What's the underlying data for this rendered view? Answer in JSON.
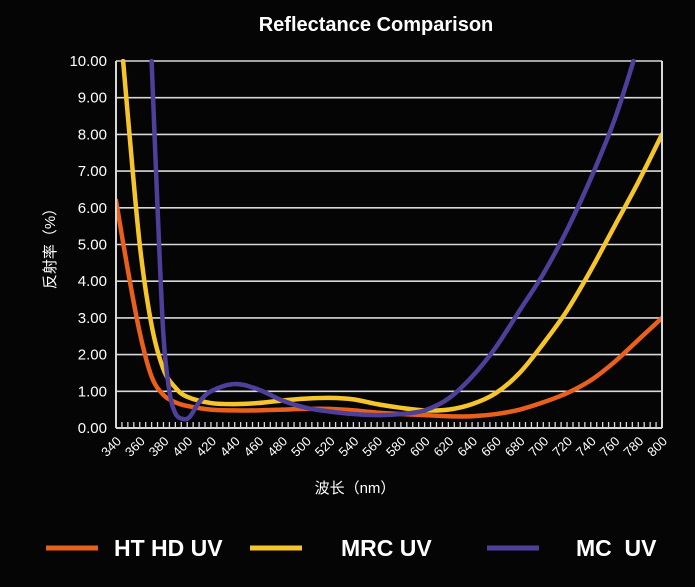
{
  "chart_data": {
    "type": "line",
    "title": "Reflectance Comparison",
    "xlabel": "波长（nm）",
    "ylabel": "反射率（%）",
    "xlim": [
      340,
      800
    ],
    "ylim": [
      0,
      10
    ],
    "grid": "horizontal",
    "legend_position": "bottom",
    "x_ticks": [
      340,
      360,
      380,
      400,
      420,
      440,
      460,
      480,
      500,
      520,
      540,
      560,
      580,
      600,
      620,
      640,
      660,
      680,
      700,
      720,
      740,
      760,
      780,
      800
    ],
    "y_ticks": [
      "0.00",
      "1.00",
      "2.00",
      "3.00",
      "4.00",
      "5.00",
      "6.00",
      "7.00",
      "8.00",
      "9.00",
      "10.00"
    ],
    "series": [
      {
        "name": "HT HD UV",
        "color": "#e8601c",
        "x": [
          340,
          350,
          360,
          370,
          380,
          390,
          400,
          420,
          440,
          460,
          480,
          500,
          520,
          540,
          560,
          580,
          600,
          620,
          640,
          660,
          680,
          700,
          720,
          740,
          760,
          780,
          800
        ],
        "y": [
          6.2,
          4.3,
          2.6,
          1.4,
          0.9,
          0.7,
          0.6,
          0.5,
          0.48,
          0.48,
          0.5,
          0.52,
          0.52,
          0.48,
          0.42,
          0.38,
          0.35,
          0.32,
          0.32,
          0.38,
          0.5,
          0.7,
          0.95,
          1.3,
          1.8,
          2.4,
          3.0
        ]
      },
      {
        "name": "MRC UV",
        "color": "#f5c52a",
        "x": [
          346,
          350,
          360,
          370,
          380,
          390,
          400,
          420,
          440,
          460,
          480,
          500,
          520,
          540,
          560,
          580,
          600,
          620,
          640,
          660,
          680,
          700,
          720,
          740,
          760,
          780,
          800
        ],
        "y": [
          10.0,
          8.5,
          5.0,
          2.8,
          1.6,
          1.1,
          0.85,
          0.68,
          0.65,
          0.68,
          0.75,
          0.8,
          0.82,
          0.78,
          0.65,
          0.55,
          0.48,
          0.5,
          0.65,
          0.95,
          1.5,
          2.3,
          3.2,
          4.3,
          5.5,
          6.7,
          8.0
        ]
      },
      {
        "name": "MC  UV",
        "color": "#4e3f9a",
        "x": [
          370,
          375,
          380,
          385,
          390,
          396,
          402,
          410,
          420,
          440,
          460,
          480,
          500,
          520,
          540,
          560,
          580,
          600,
          620,
          640,
          660,
          680,
          700,
          720,
          740,
          760,
          776
        ],
        "y": [
          10.0,
          6.0,
          2.5,
          1.0,
          0.4,
          0.25,
          0.3,
          0.7,
          1.0,
          1.2,
          1.05,
          0.75,
          0.55,
          0.45,
          0.38,
          0.35,
          0.38,
          0.48,
          0.8,
          1.4,
          2.2,
          3.2,
          4.2,
          5.4,
          6.8,
          8.4,
          10.0
        ]
      }
    ]
  }
}
